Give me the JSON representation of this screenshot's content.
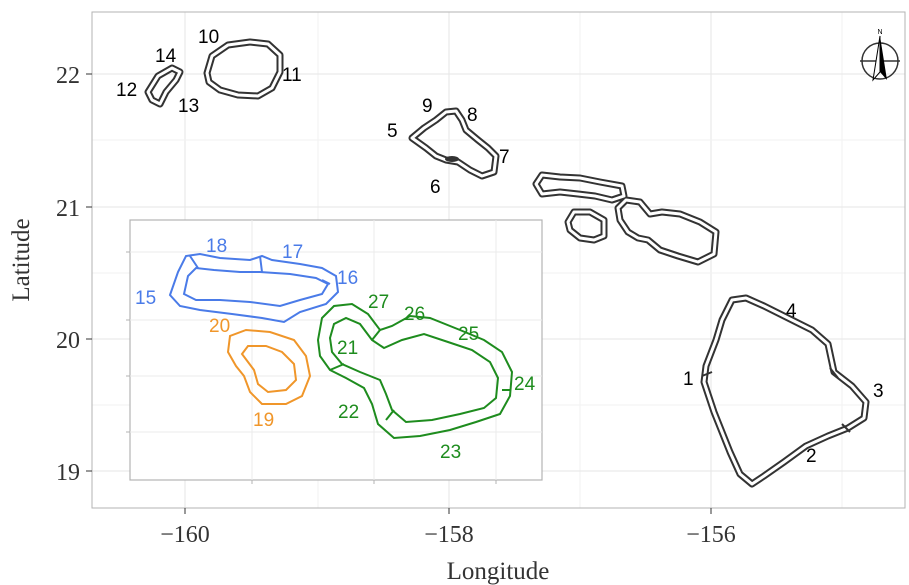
{
  "map": {
    "x_axis_title": "Longitude",
    "y_axis_title": "Latitude",
    "x_ticks": [
      "−160",
      "−158",
      "−156"
    ],
    "y_ticks": [
      "19",
      "20",
      "21",
      "22"
    ],
    "north_arrow_label": "N",
    "main_labels": [
      "1",
      "2",
      "3",
      "4",
      "5",
      "6",
      "7",
      "8",
      "9",
      "10",
      "11",
      "12",
      "13",
      "14"
    ],
    "inset_labels_blue": [
      "15",
      "16",
      "17",
      "18"
    ],
    "inset_labels_orange": [
      "19",
      "20"
    ],
    "inset_labels_green": [
      "21",
      "22",
      "23",
      "24",
      "25",
      "26",
      "27"
    ],
    "colors": {
      "island_outline": "#333333",
      "blue": "#4A7BE8",
      "orange": "#F0962A",
      "green": "#1E8C1E",
      "grid": "#e6e6e6",
      "panel_border": "#b3b3b3"
    }
  }
}
